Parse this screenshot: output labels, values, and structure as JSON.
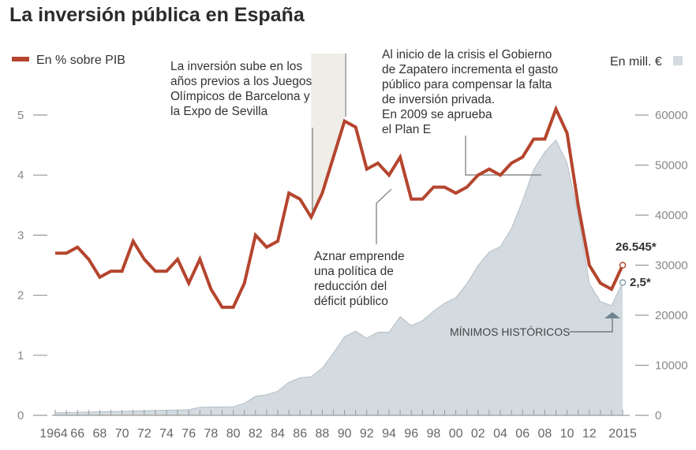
{
  "title": "La inversión pública en España",
  "legend": {
    "left": "En % sobre PIB",
    "right": "En mill. €"
  },
  "annotations": {
    "olympics": [
      "La inversión sube en los",
      "años previos a los Juegos",
      "Olímpicos de Barcelona y",
      "la Expo de Sevilla"
    ],
    "zapatero": [
      "Al inicio de la crisis el Gobierno",
      "de Zapatero incrementa el gasto",
      "público para compensar la falta",
      "de inversión privada.",
      "En 2009 se aprueba",
      "el Plan E"
    ],
    "aznar": [
      "Aznar emprende",
      "una política de",
      "reducción del",
      "déficit público"
    ],
    "minimos": "MÍNIMOS HISTÓRICOS"
  },
  "colors": {
    "line": "#b5452e",
    "area": "#d3dbe0",
    "area_edge": "#b9c4cb",
    "band": "#efede7"
  },
  "chart_data": {
    "type": "line+area",
    "title": "La inversión pública en España",
    "x": [
      1964,
      1965,
      1966,
      1967,
      1968,
      1969,
      1970,
      1971,
      1972,
      1973,
      1974,
      1975,
      1976,
      1977,
      1978,
      1979,
      1980,
      1981,
      1982,
      1983,
      1984,
      1985,
      1986,
      1987,
      1988,
      1989,
      1990,
      1991,
      1992,
      1993,
      1994,
      1995,
      1996,
      1997,
      1998,
      1999,
      2000,
      2001,
      2002,
      2003,
      2004,
      2005,
      2006,
      2007,
      2008,
      2009,
      2010,
      2011,
      2012,
      2013,
      2014,
      2015
    ],
    "xticks": [
      "1964",
      "66",
      "68",
      "70",
      "72",
      "74",
      "76",
      "78",
      "80",
      "82",
      "84",
      "86",
      "88",
      "90",
      "92",
      "94",
      "96",
      "98",
      "00",
      "02",
      "04",
      "06",
      "08",
      "10",
      "12",
      "2015"
    ],
    "xtick_years": [
      1964,
      1966,
      1968,
      1970,
      1972,
      1974,
      1976,
      1978,
      1980,
      1982,
      1984,
      1986,
      1988,
      1990,
      1992,
      1994,
      1996,
      1998,
      2000,
      2002,
      2004,
      2006,
      2008,
      2010,
      2012,
      2015
    ],
    "series": [
      {
        "name": "En % sobre PIB",
        "axis": "left",
        "type": "line",
        "values": [
          2.7,
          2.7,
          2.8,
          2.6,
          2.3,
          2.4,
          2.4,
          2.9,
          2.6,
          2.4,
          2.4,
          2.6,
          2.2,
          2.6,
          2.1,
          1.8,
          1.8,
          2.2,
          3.0,
          2.8,
          2.9,
          3.7,
          3.6,
          3.3,
          3.7,
          4.3,
          4.9,
          4.8,
          4.1,
          4.2,
          4.0,
          4.3,
          3.6,
          3.6,
          3.8,
          3.8,
          3.7,
          3.8,
          4.0,
          4.1,
          4.0,
          4.2,
          4.3,
          4.6,
          4.6,
          5.1,
          4.7,
          3.5,
          2.5,
          2.2,
          2.1,
          2.5
        ]
      },
      {
        "name": "En mill. €",
        "axis": "right",
        "type": "area",
        "values": [
          500,
          550,
          600,
          650,
          700,
          750,
          800,
          850,
          900,
          950,
          1000,
          1050,
          1100,
          1600,
          1650,
          1650,
          1700,
          2400,
          3800,
          4100,
          4800,
          6600,
          7500,
          7700,
          9400,
          12400,
          15700,
          16800,
          15400,
          16600,
          16600,
          19700,
          17900,
          18900,
          20800,
          22400,
          23500,
          26300,
          29900,
          32600,
          33700,
          37300,
          42800,
          49100,
          52600,
          55000,
          50400,
          40000,
          26300,
          22700,
          21900,
          26545
        ]
      }
    ],
    "left_axis": {
      "range": [
        0,
        5
      ],
      "ticks": [
        "0",
        "1",
        "2",
        "3",
        "4",
        "5"
      ]
    },
    "right_axis": {
      "range": [
        0,
        60000
      ],
      "ticks": [
        "0",
        "10000",
        "20000",
        "30000",
        "40000",
        "50000",
        "60000"
      ]
    },
    "highlight_band": [
      1987,
      1990
    ],
    "end_labels": {
      "area": "26.545*",
      "line": "2,5*"
    },
    "grid": false
  }
}
